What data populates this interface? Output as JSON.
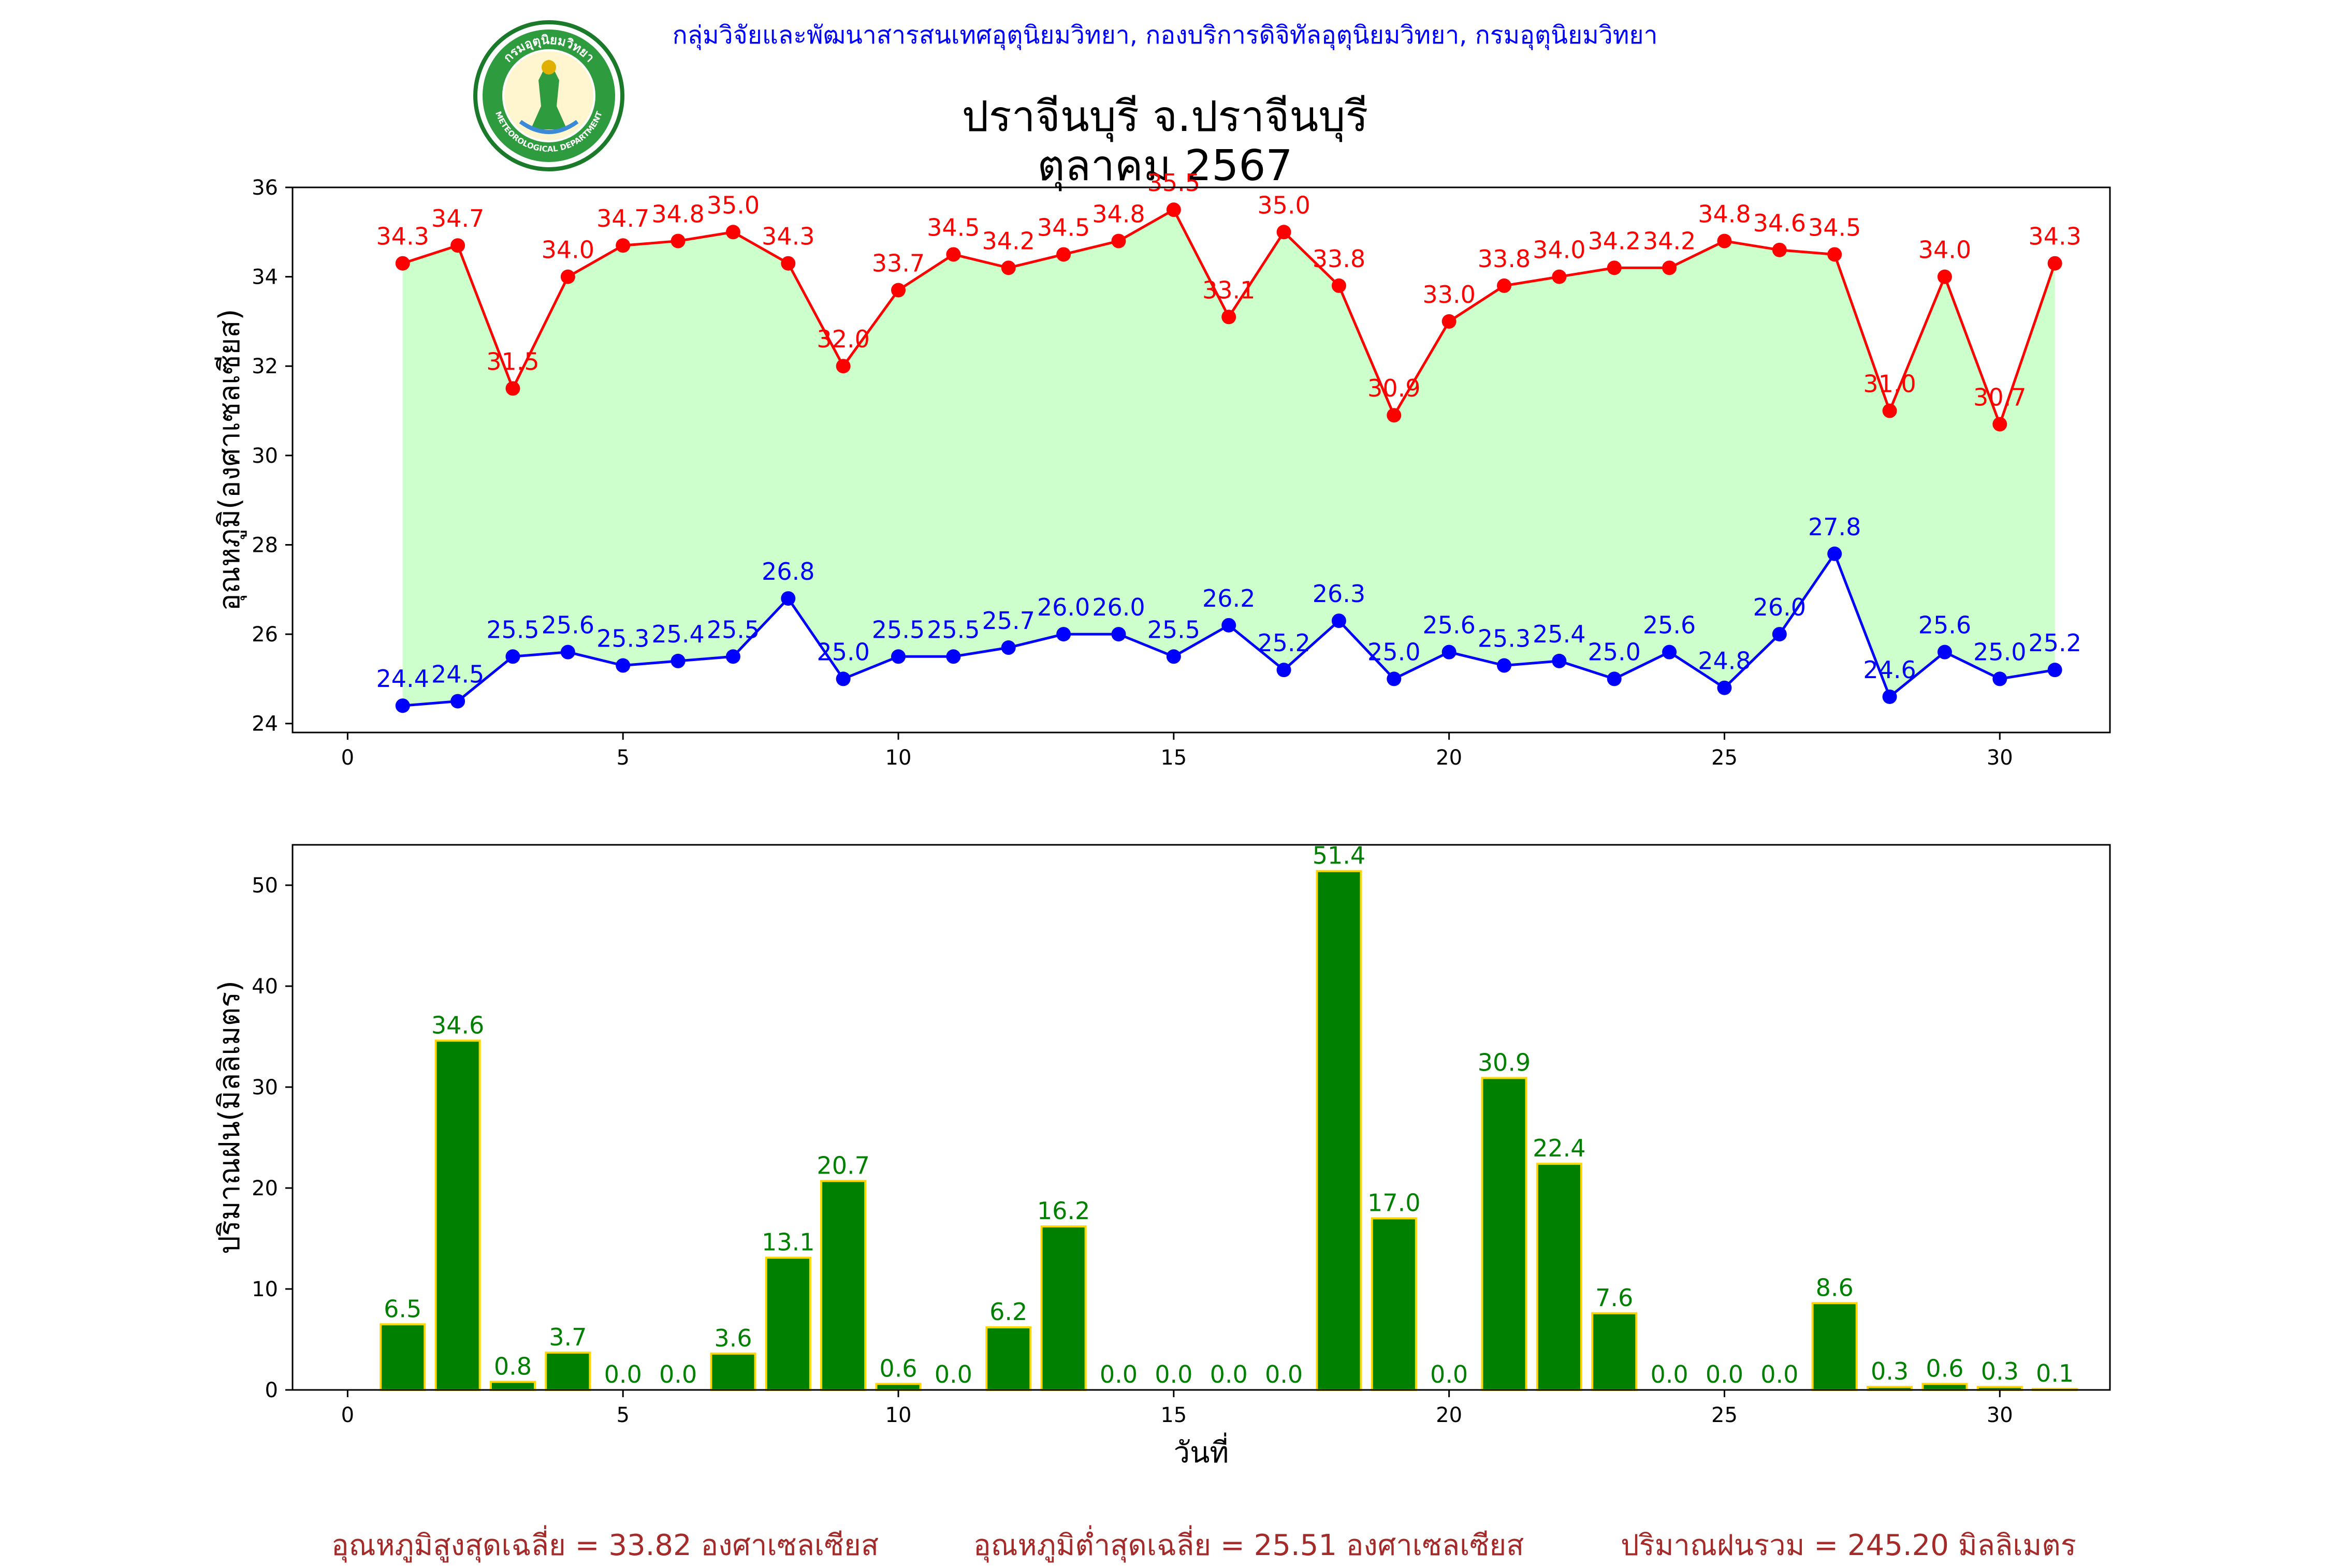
{
  "header": {
    "agency_line": "กลุ่มวิจัยและพัฒนาสารสนเทศอุตุนิยมวิทยา, กองบริการดิจิทัลอุตุนิยมวิทยา, กรมอุตุนิยมวิทยา",
    "title_line1": "ปราจีนบุรี จ.ปราจีนบุรี",
    "title_line2": "ตุลาคม 2567",
    "agency_color": "#0000ff"
  },
  "logo": {
    "icon": "meteorological-department-seal-icon",
    "top_text": "กรมอุตุนิยมวิทยา",
    "bottom_text": "METEOROLOGICAL DEPARTMENT"
  },
  "chart_data": [
    {
      "type": "line",
      "ylabel": "อุณหภูมิ(องศาเซลเซียส)",
      "xlim": [
        -1,
        32
      ],
      "ylim": [
        23.8,
        36
      ],
      "xticks": [
        0,
        5,
        10,
        15,
        20,
        25,
        30
      ],
      "yticks": [
        24,
        26,
        28,
        30,
        32,
        34,
        36
      ],
      "fill_between_color": "#ccffcc",
      "x": [
        1,
        2,
        3,
        4,
        5,
        6,
        7,
        8,
        9,
        10,
        11,
        12,
        13,
        14,
        15,
        16,
        17,
        18,
        19,
        20,
        21,
        22,
        23,
        24,
        25,
        26,
        27,
        28,
        29,
        30,
        31
      ],
      "series": [
        {
          "color": "#ff0000",
          "values": [
            34.3,
            34.7,
            31.5,
            34.0,
            34.7,
            34.8,
            35.0,
            34.3,
            32.0,
            33.7,
            34.5,
            34.2,
            34.5,
            34.8,
            35.5,
            33.1,
            35.0,
            33.8,
            30.9,
            33.0,
            33.8,
            34.0,
            34.2,
            34.2,
            34.8,
            34.6,
            34.5,
            31.0,
            34.0,
            30.7,
            34.3
          ]
        },
        {
          "color": "#0000ff",
          "values": [
            24.4,
            24.5,
            25.5,
            25.6,
            25.3,
            25.4,
            25.5,
            26.8,
            25.0,
            25.5,
            25.5,
            25.7,
            26.0,
            26.0,
            25.5,
            26.2,
            25.2,
            26.3,
            25.0,
            25.6,
            25.3,
            25.4,
            25.0,
            25.6,
            24.8,
            26.0,
            27.8,
            24.6,
            25.6,
            25.0,
            25.2
          ]
        }
      ]
    },
    {
      "type": "bar",
      "xlabel": "วันที่",
      "ylabel": "ปริมาณฝน(มิลลิเมตร)",
      "xlim": [
        -1,
        32
      ],
      "ylim": [
        0,
        54
      ],
      "xticks": [
        0,
        5,
        10,
        15,
        20,
        25,
        30
      ],
      "yticks": [
        0,
        10,
        20,
        30,
        40,
        50
      ],
      "bar_color": "#008000",
      "bar_edge_color": "#ffd700",
      "label_color": "#008000",
      "x": [
        1,
        2,
        3,
        4,
        5,
        6,
        7,
        8,
        9,
        10,
        11,
        12,
        13,
        14,
        15,
        16,
        17,
        18,
        19,
        20,
        21,
        22,
        23,
        24,
        25,
        26,
        27,
        28,
        29,
        30,
        31
      ],
      "values": [
        6.5,
        34.6,
        0.8,
        3.7,
        0.0,
        0.0,
        3.6,
        13.1,
        20.7,
        0.6,
        0.0,
        6.2,
        16.2,
        0.0,
        0.0,
        0.0,
        0.0,
        51.4,
        17.0,
        0.0,
        30.9,
        22.4,
        7.6,
        0.0,
        0.0,
        0.0,
        8.6,
        0.3,
        0.6,
        0.3,
        0.1
      ]
    }
  ],
  "footer": {
    "color": "#a52a2a",
    "avg_max": "อุณหภูมิสูงสุดเฉลี่ย = 33.82 องศาเซลเซียส",
    "avg_min": "อุณหภูมิต่ำสุดเฉลี่ย = 25.51 องศาเซลเซียส",
    "total_rain": "ปริมาณฝนรวม = 245.20 มิลลิเมตร"
  }
}
